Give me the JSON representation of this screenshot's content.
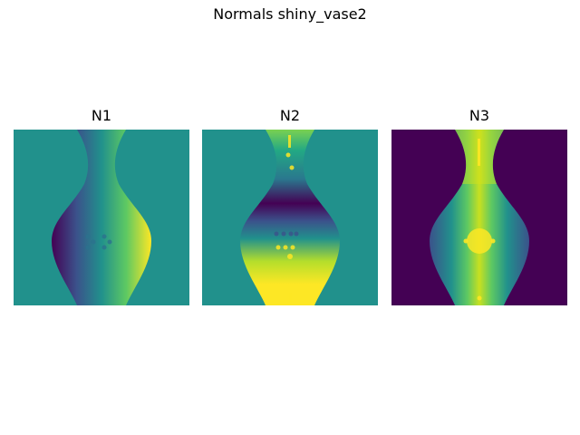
{
  "figure": {
    "title": "Normals shiny_vase2"
  },
  "colors": {
    "viridis_0": "#440154",
    "viridis_25": "#3b528b",
    "viridis_50": "#21918c",
    "viridis_75": "#5ec962",
    "viridis_100": "#fde725"
  },
  "chart_data": [
    {
      "type": "heatmap",
      "title": "N1",
      "colormap": "viridis",
      "background_value": 0.5,
      "description_gradient": "horizontal",
      "axes": "off"
    },
    {
      "type": "heatmap",
      "title": "N2",
      "colormap": "viridis",
      "background_value": 0.5,
      "description_gradient": "vertical",
      "axes": "off"
    },
    {
      "type": "heatmap",
      "title": "N3",
      "colormap": "viridis",
      "background_value": 0.0,
      "description_gradient": "radial",
      "axes": "off"
    }
  ]
}
